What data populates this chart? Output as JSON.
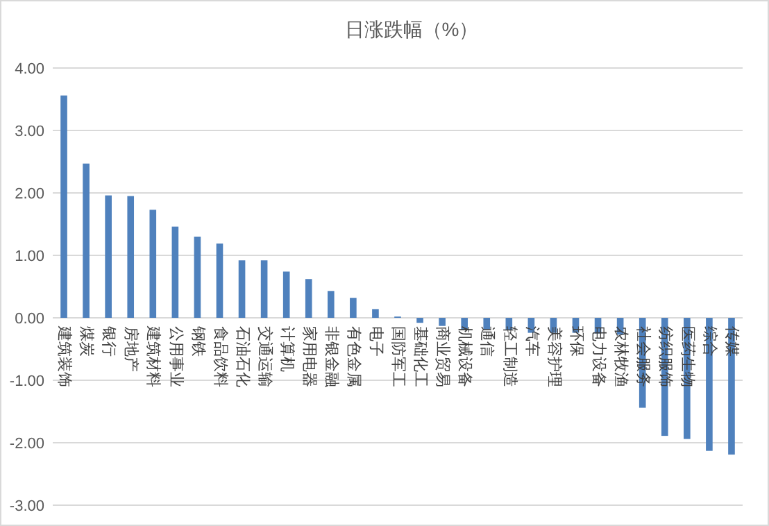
{
  "chart_data": {
    "type": "bar",
    "title": "日涨跌幅（%）",
    "categories": [
      "建筑装饰",
      "煤炭",
      "银行",
      "房地产",
      "建筑材料",
      "公用事业",
      "钢铁",
      "食品饮料",
      "石油石化",
      "交通运输",
      "计算机",
      "家用电器",
      "非银金融",
      "有色金属",
      "电子",
      "国防军工",
      "基础化工",
      "商业贸易",
      "机械设备",
      "通信",
      "轻工制造",
      "汽车",
      "美容护理",
      "环保",
      "电力设备",
      "农林牧渔",
      "社会服务",
      "纺织服饰",
      "医药生物",
      "综合",
      "传媒"
    ],
    "values": [
      3.56,
      2.47,
      1.96,
      1.95,
      1.73,
      1.46,
      1.3,
      1.19,
      0.92,
      0.92,
      0.74,
      0.62,
      0.43,
      0.32,
      0.14,
      0.02,
      -0.08,
      -0.13,
      -0.19,
      -0.19,
      -0.2,
      -0.24,
      -0.24,
      -0.24,
      -0.25,
      -0.27,
      -1.44,
      -1.89,
      -1.94,
      -2.13,
      -2.19
    ],
    "color": "#4f81bd",
    "ylim": [
      -3,
      4
    ],
    "yticks": [
      {
        "value": -3,
        "label": "-3.00"
      },
      {
        "value": -2,
        "label": "-2.00"
      },
      {
        "value": -1,
        "label": "-1.00"
      },
      {
        "value": 0,
        "label": "0.00"
      },
      {
        "value": 1,
        "label": "1.00"
      },
      {
        "value": 2,
        "label": "2.00"
      },
      {
        "value": 3,
        "label": "3.00"
      },
      {
        "value": 4,
        "label": "4.00"
      }
    ],
    "grid": "y"
  }
}
